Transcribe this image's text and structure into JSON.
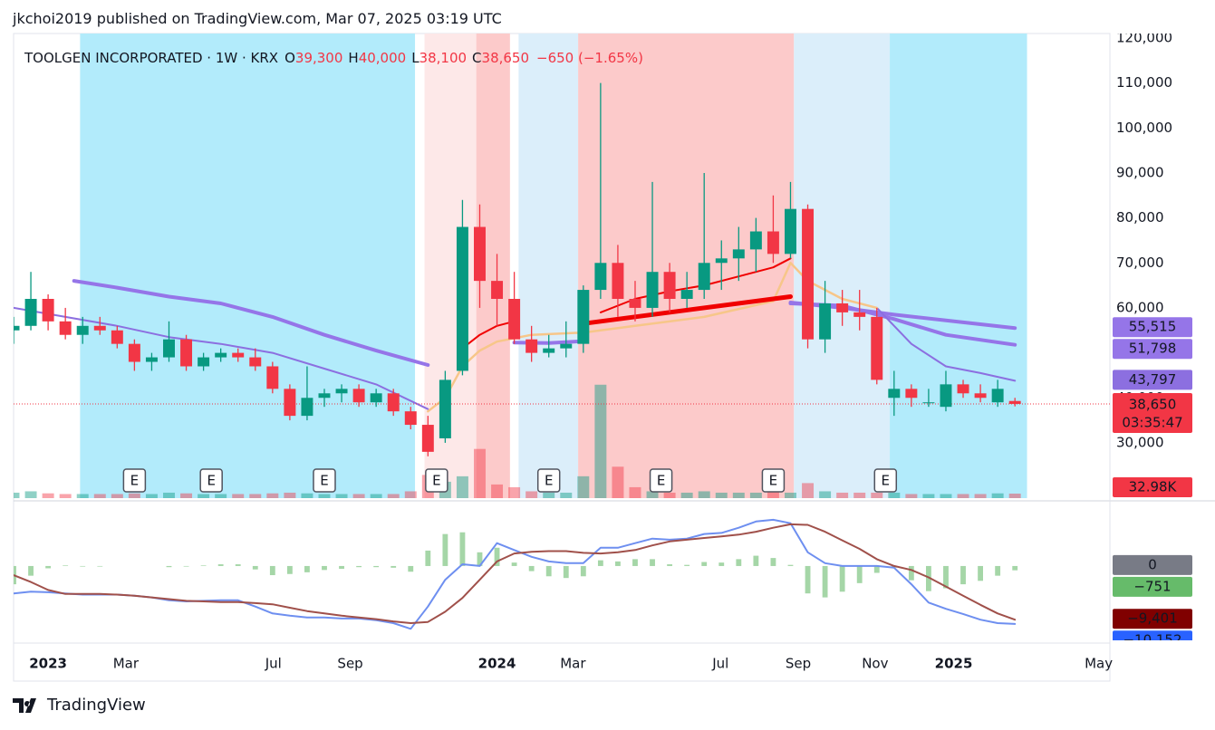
{
  "header": "jkchoi2019 published on TradingView.com, Mar 07, 2025 03:19 UTC",
  "footer": "TradingView",
  "chart_data": {
    "type": "candlestick",
    "legend": {
      "symbol": "TOOLGEN INCORPORATED · 1W · KRX",
      "items": [
        {
          "key": "O",
          "value": "39,300"
        },
        {
          "key": "H",
          "value": "40,000"
        },
        {
          "key": "L",
          "value": "38,100"
        },
        {
          "key": "C",
          "value": "38,650"
        }
      ],
      "change": "−650 (−1.65%)"
    },
    "xlim": [
      0,
      127
    ],
    "xticks": [
      {
        "value": 4,
        "label": "2023"
      },
      {
        "value": 13,
        "label": "Mar"
      },
      {
        "value": 30.1,
        "label": "Jul"
      },
      {
        "value": 39,
        "label": "Sep"
      },
      {
        "value": 56,
        "label": "2024"
      },
      {
        "value": 64.8,
        "label": "Mar"
      },
      {
        "value": 81.9,
        "label": "Jul"
      },
      {
        "value": 90.9,
        "label": "Sep"
      },
      {
        "value": 99.8,
        "label": "Nov"
      },
      {
        "value": 108.9,
        "label": "2025"
      },
      {
        "value": 125.7,
        "label": "May"
      }
    ],
    "ylim": [
      17700,
      121000
    ],
    "yticks": [
      {
        "value": 30000,
        "label": "30,000"
      },
      {
        "value": 40000,
        "label": "40,000"
      },
      {
        "value": 50000,
        "label": "50,000"
      },
      {
        "value": 60000,
        "label": "60,000"
      },
      {
        "value": 70000,
        "label": "70,000"
      },
      {
        "value": 80000,
        "label": "80,000"
      },
      {
        "value": 90000,
        "label": "90,000"
      },
      {
        "value": 100000,
        "label": "100,000"
      },
      {
        "value": 110000,
        "label": "110,000"
      },
      {
        "value": 120000,
        "label": "120,000"
      }
    ],
    "up_color": "#089981",
    "down_color": "#f23645",
    "bands": [
      {
        "x": [
          7.7,
          46.5
        ],
        "color": "#b2ebfb"
      },
      {
        "x": [
          47.6,
          53.6
        ],
        "color": "#fde8e8"
      },
      {
        "x": [
          53.6,
          57.5
        ],
        "color": "#fccaca"
      },
      {
        "x": [
          58.5,
          65.4
        ],
        "color": "#dbeefa"
      },
      {
        "x": [
          65.4,
          90.4
        ],
        "color": "#fccaca"
      },
      {
        "x": [
          90.4,
          101.5
        ],
        "color": "#dbeefa"
      },
      {
        "x": [
          101.5,
          117.4
        ],
        "color": "#b2ebfb"
      }
    ],
    "x": [
      0,
      2,
      4,
      6,
      8,
      10,
      12,
      14,
      16,
      18,
      20,
      22,
      24,
      26,
      28,
      30,
      32,
      34,
      36,
      38,
      40,
      42,
      44,
      46,
      48,
      50,
      52,
      54,
      56,
      58,
      60,
      62,
      64,
      66,
      68,
      70,
      72,
      74,
      76,
      78,
      80,
      82,
      84,
      86,
      88,
      90,
      92,
      94,
      96,
      98,
      100,
      102,
      104,
      106,
      108,
      110,
      112,
      114,
      116
    ],
    "open": [
      55000,
      56000,
      62000,
      57000,
      54000,
      56000,
      55000,
      52000,
      48000,
      49000,
      53000,
      47000,
      49000,
      50000,
      49000,
      47000,
      42000,
      36000,
      40000,
      41000,
      42000,
      39000,
      41000,
      37000,
      34000,
      31000,
      46000,
      78000,
      66000,
      62000,
      53000,
      50000,
      51000,
      52000,
      64000,
      70000,
      62000,
      60000,
      68000,
      62000,
      64000,
      70000,
      71000,
      73000,
      77000,
      72000,
      82000,
      53000,
      61000,
      59000,
      58000,
      40000,
      42000,
      39000,
      38000,
      43000,
      41000,
      39000,
      39300
    ],
    "high": [
      58000,
      68000,
      63000,
      60000,
      58000,
      58000,
      56000,
      53000,
      50000,
      57000,
      54000,
      50000,
      51000,
      51000,
      51000,
      48000,
      43000,
      47000,
      42000,
      43000,
      43000,
      42000,
      42000,
      38000,
      36000,
      46000,
      84000,
      83000,
      72000,
      68000,
      56000,
      54000,
      57000,
      65000,
      110000,
      74000,
      66000,
      88000,
      70000,
      68000,
      90000,
      75000,
      78000,
      80000,
      85000,
      88000,
      83000,
      66000,
      64000,
      64000,
      60000,
      46000,
      43000,
      42000,
      46000,
      44000,
      43000,
      44000,
      40000
    ],
    "low": [
      52000,
      55000,
      55000,
      53000,
      52000,
      54000,
      51000,
      46000,
      46000,
      48000,
      46000,
      46000,
      48000,
      48000,
      46000,
      41000,
      35000,
      35000,
      38000,
      39000,
      38000,
      38000,
      36000,
      33000,
      27000,
      30000,
      45000,
      60000,
      56000,
      52000,
      48000,
      49000,
      49000,
      50000,
      62000,
      58000,
      57000,
      58000,
      59000,
      60000,
      62000,
      64000,
      66000,
      68000,
      70000,
      71000,
      51000,
      50000,
      56000,
      55000,
      43000,
      36000,
      38000,
      38000,
      37000,
      40000,
      39000,
      38000,
      38100
    ],
    "close": [
      56000,
      62000,
      57000,
      54000,
      56000,
      55000,
      52000,
      48000,
      49000,
      53000,
      47000,
      49000,
      50000,
      49000,
      47000,
      42000,
      36000,
      40000,
      41000,
      42000,
      39000,
      41000,
      37000,
      34000,
      28000,
      44000,
      78000,
      66000,
      62000,
      53000,
      50000,
      51000,
      52000,
      64000,
      70000,
      62000,
      60000,
      68000,
      62000,
      64000,
      70000,
      71000,
      73000,
      77000,
      72000,
      82000,
      53000,
      61000,
      59000,
      58000,
      44000,
      42000,
      40000,
      39000,
      43000,
      41000,
      40000,
      42000,
      38650
    ],
    "volume": [
      40000,
      50000,
      35000,
      30000,
      30000,
      30000,
      30000,
      35000,
      30000,
      40000,
      35000,
      30000,
      30000,
      30000,
      30000,
      35000,
      40000,
      35000,
      30000,
      30000,
      30000,
      30000,
      30000,
      50000,
      170000,
      120000,
      160000,
      360000,
      100000,
      80000,
      50000,
      40000,
      40000,
      160000,
      830000,
      230000,
      80000,
      50000,
      40000,
      40000,
      50000,
      40000,
      40000,
      40000,
      50000,
      40000,
      110000,
      50000,
      40000,
      40000,
      40000,
      40000,
      30000,
      30000,
      30000,
      30000,
      30000,
      35000,
      32980
    ],
    "volume_lim": [
      0,
      3400000
    ],
    "lines": [
      {
        "color": "#9575e8",
        "width": 4,
        "x": [
          7,
          12,
          18,
          24,
          30,
          36,
          42,
          48,
          50,
          58,
          62,
          66,
          68,
          90,
          96,
          102,
          108,
          116
        ],
        "values": [
          66000,
          64500,
          62500,
          61000,
          58000,
          54000,
          50500,
          47300,
          null,
          52300,
          52200,
          52600,
          null,
          61200,
          60000,
          58500,
          57200,
          55515
        ]
      },
      {
        "color": "#9575e8",
        "width": 4,
        "x": [
          90,
          96,
          102,
          108,
          116
        ],
        "values": [
          61000,
          60500,
          57500,
          54000,
          51798
        ]
      },
      {
        "color": "#8c6fe0",
        "width": 2,
        "x": [
          0,
          6,
          12,
          18,
          24,
          30,
          36,
          42,
          48,
          50,
          100,
          104,
          108,
          112,
          116
        ],
        "values": [
          60000,
          58000,
          56000,
          53500,
          52000,
          50000,
          46500,
          43000,
          37500,
          null,
          60000,
          52000,
          47000,
          45500,
          43797
        ]
      },
      {
        "color": "#f7c689",
        "width": 2.5,
        "x": [
          48,
          50,
          52,
          54,
          56,
          60,
          66,
          72,
          80,
          88,
          90,
          92,
          96,
          100
        ],
        "values": [
          37000,
          40000,
          47000,
          50500,
          52500,
          54000,
          54500,
          56000,
          58000,
          61500,
          70000,
          66000,
          62000,
          60000
        ]
      },
      {
        "color": "#f00000",
        "width": 2,
        "x": [
          52,
          54,
          56,
          58,
          60,
          68,
          72,
          76,
          80,
          84,
          88,
          90
        ],
        "values": [
          51000,
          54000,
          56000,
          57000,
          null,
          59000,
          62000,
          63700,
          65000,
          67000,
          69000,
          71000
        ]
      },
      {
        "color": "#f00000",
        "width": 5,
        "x": [
          66,
          90
        ],
        "values": [
          56500,
          62500
        ]
      }
    ],
    "events": {
      "x": [
        14,
        22.9,
        36,
        49,
        62,
        75,
        88,
        101
      ],
      "labels": [
        "E",
        "E",
        "E",
        "E",
        "E",
        "E",
        "E",
        "E"
      ]
    },
    "price_labels": [
      {
        "value": 55515,
        "label": "55,515",
        "color": "#9575e8"
      },
      {
        "value": 51798,
        "label": "51,798",
        "color": "#9575e8"
      },
      {
        "value": 43797,
        "label": "43,797",
        "color": "#8c6fe0"
      }
    ],
    "last_price": {
      "value": 38650,
      "label": "38,650",
      "countdown": "03:35:47",
      "color": "#f23645"
    },
    "volume_label": {
      "value": 32980,
      "label": "32.98K",
      "color": "#f23645"
    },
    "macd": {
      "ylim": [
        -12700,
        10300
      ],
      "hist_color": "#a5d6a7",
      "macd_color": "#6e8ff0",
      "signal_color": "#a0504a",
      "macd": [
        -4800,
        -4500,
        -4600,
        -4800,
        -5000,
        -5000,
        -5000,
        -5200,
        -5500,
        -6000,
        -6200,
        -6100,
        -6000,
        -6000,
        -7100,
        -8300,
        -8700,
        -9000,
        -9000,
        -9200,
        -9200,
        -9500,
        -10000,
        -11000,
        -7100,
        -2400,
        300,
        0,
        4000,
        2800,
        1600,
        800,
        500,
        500,
        3200,
        3200,
        4000,
        4800,
        4600,
        4800,
        5600,
        5800,
        6700,
        7800,
        8100,
        7500,
        2400,
        500,
        0,
        0,
        0,
        -300,
        -3200,
        -6400,
        -7500,
        -8400,
        -9400,
        -10000,
        -10152
      ],
      "signal": [
        -1600,
        -2800,
        -4200,
        -4900,
        -4900,
        -4900,
        -5000,
        -5200,
        -5500,
        -5800,
        -6100,
        -6200,
        -6300,
        -6300,
        -6500,
        -6700,
        -7300,
        -7900,
        -8300,
        -8700,
        -9000,
        -9300,
        -9700,
        -10000,
        -9800,
        -8000,
        -5600,
        -2400,
        800,
        2200,
        2500,
        2600,
        2600,
        2300,
        2200,
        2400,
        2800,
        3600,
        4300,
        4600,
        4900,
        5200,
        5500,
        6000,
        6700,
        7300,
        7200,
        6000,
        4500,
        3000,
        1200,
        0,
        -700,
        -2000,
        -3600,
        -5200,
        -6800,
        -8300,
        -9401
      ],
      "hist": [
        -3200,
        -1700,
        -400,
        100,
        -100,
        -100,
        0,
        0,
        0,
        -200,
        -100,
        100,
        300,
        300,
        -600,
        -1600,
        -1400,
        -1100,
        -700,
        -500,
        -200,
        -200,
        -300,
        -1000,
        2700,
        5600,
        5900,
        2400,
        3200,
        600,
        -900,
        -1800,
        -2100,
        -1800,
        1000,
        800,
        1200,
        1200,
        300,
        200,
        700,
        600,
        1200,
        1800,
        1400,
        200,
        -4800,
        -5500,
        -4500,
        -3000,
        -1200,
        -300,
        -2500,
        -4400,
        -3900,
        -3200,
        -2600,
        -1700,
        -751
      ],
      "labels": [
        {
          "value": 0,
          "label": "0",
          "color": "#787b86"
        },
        {
          "value": -751,
          "label": "−751",
          "color": "#66bb6a"
        },
        {
          "value": -9401,
          "label": "−9,401",
          "color": "#800000"
        },
        {
          "value": -10152,
          "label": "−10,152",
          "color": "#2962ff"
        }
      ]
    }
  }
}
